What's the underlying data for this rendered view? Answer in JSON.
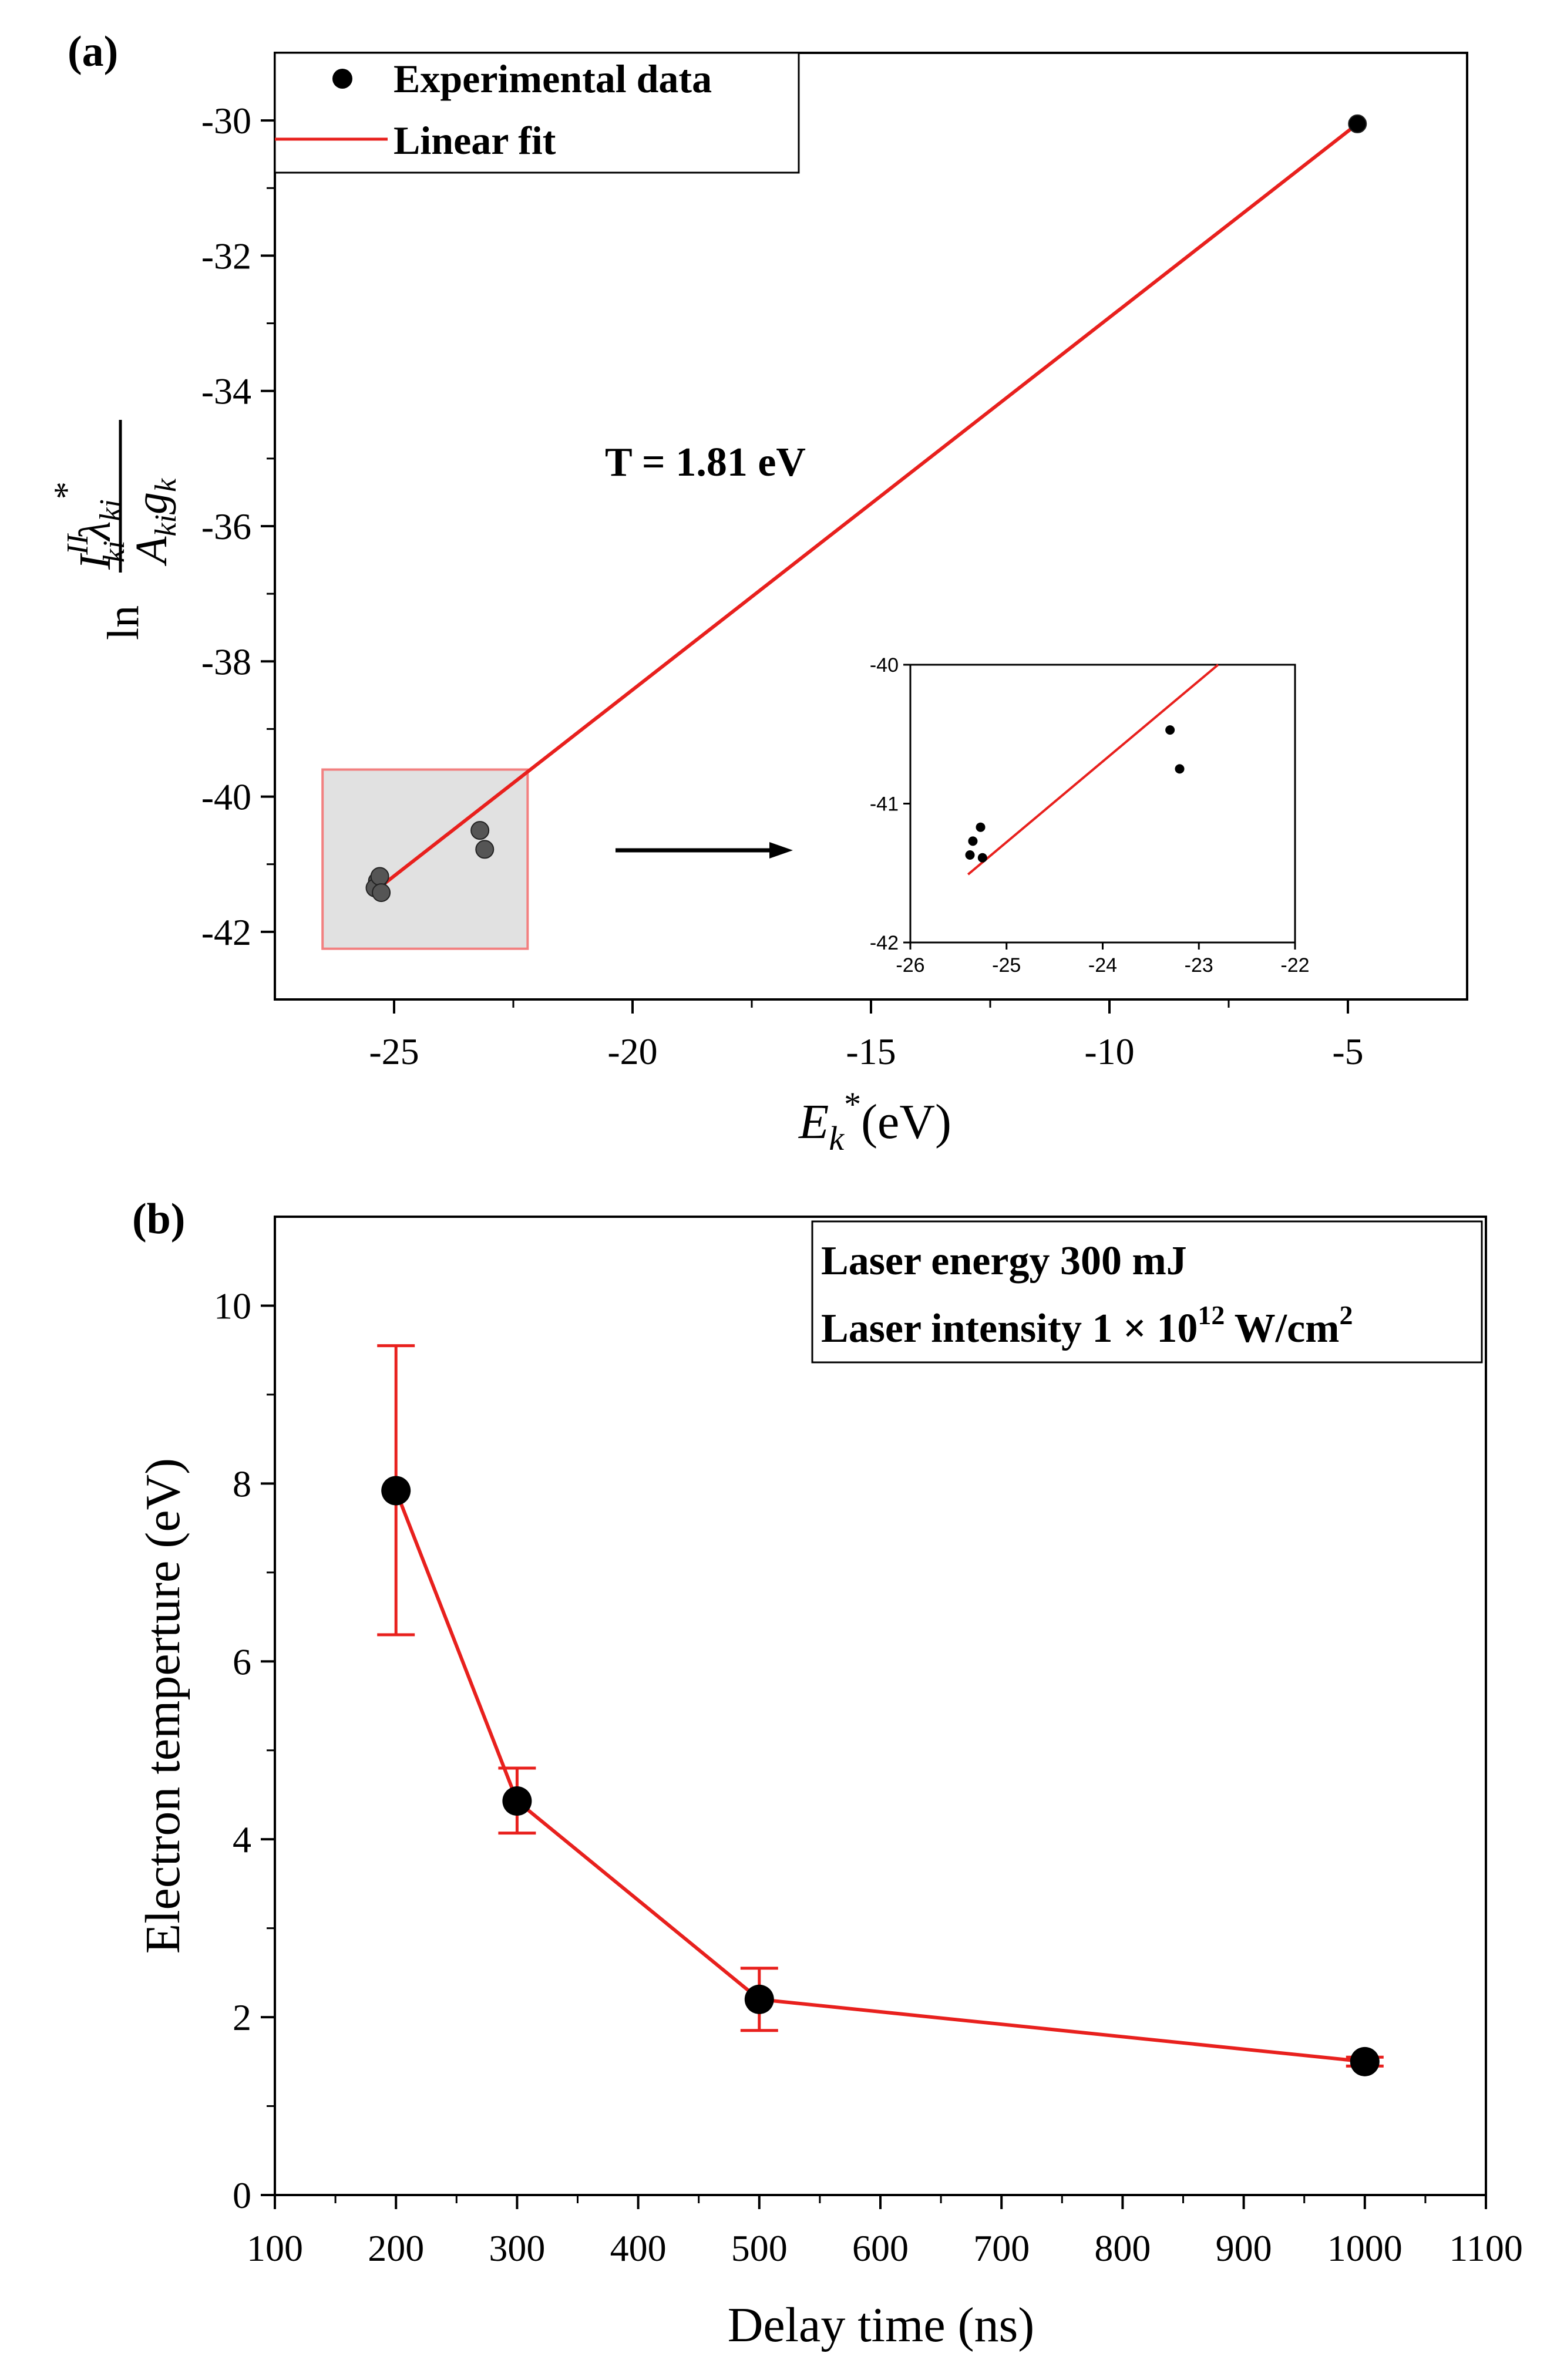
{
  "chart_data": [
    {
      "panel_label": "(a)",
      "type": "scatter",
      "title": "",
      "xlabel_main": "E",
      "xlabel_sub": "k",
      "xlabel_sup": "*",
      "xlabel_unit": "(eV)",
      "ylabel": {
        "prefix": "ln",
        "numerator_I": "I",
        "numerator_I_sup": "II",
        "numerator_I_sub": "ki",
        "numerator_lambda": "λ",
        "numerator_lambda_sub": "ki",
        "numerator_star": "*",
        "denominator_A": "A",
        "denominator_A_sub": "ki",
        "denominator_g": "g",
        "denominator_g_sub": "k"
      },
      "xlim": [
        -27.5,
        -2.5
      ],
      "ylim": [
        -43,
        -29
      ],
      "xticks": [
        -25,
        -20,
        -15,
        -10,
        -5
      ],
      "xtick_labels": [
        "-25",
        "-20",
        "-15",
        "-10",
        "-5"
      ],
      "yticks": [
        -42,
        -40,
        -38,
        -36,
        -34,
        -32,
        -30
      ],
      "ytick_labels": [
        "-42",
        "-40",
        "-38",
        "-36",
        "-34",
        "-32",
        "-30"
      ],
      "series": [
        {
          "name": "Experimental data",
          "kind": "points",
          "color": "#000000",
          "points": [
            {
              "x": -25.35,
              "y": -41.25
            },
            {
              "x": -25.4,
              "y": -41.35
            },
            {
              "x": -25.3,
              "y": -41.18
            },
            {
              "x": -25.27,
              "y": -41.42
            },
            {
              "x": -23.2,
              "y": -40.5
            },
            {
              "x": -23.1,
              "y": -40.78
            },
            {
              "x": -4.8,
              "y": -30.05
            }
          ]
        },
        {
          "name": "Linear fit",
          "kind": "line",
          "color": "#e8201d",
          "points": [
            {
              "x": -25.5,
              "y": -41.45
            },
            {
              "x": -4.8,
              "y": -30.05
            }
          ]
        }
      ],
      "legend": {
        "position": "top-left",
        "entries": [
          "Experimental data",
          "Linear fit"
        ]
      },
      "annotation": "T = 1.81 eV",
      "zoom_region": {
        "x": [
          -26.5,
          -22.2
        ],
        "y": [
          -42.25,
          -39.6
        ],
        "fill": "#e1e1e1",
        "edge": "#f28080"
      },
      "inset": {
        "xlim": [
          -26,
          -22
        ],
        "ylim": [
          -42,
          -40
        ],
        "xticks": [
          -26,
          -25,
          -24,
          -23,
          -22
        ],
        "xtick_labels": [
          "-26",
          "-25",
          "-24",
          "-23",
          "-22"
        ],
        "yticks": [
          -42,
          -41,
          -40
        ],
        "ytick_labels": [
          "-42",
          "-41",
          "-40"
        ],
        "points": [
          {
            "x": -25.35,
            "y": -41.27
          },
          {
            "x": -25.38,
            "y": -41.37
          },
          {
            "x": -25.27,
            "y": -41.17
          },
          {
            "x": -25.25,
            "y": -41.39
          },
          {
            "x": -23.3,
            "y": -40.47
          },
          {
            "x": -23.2,
            "y": -40.75
          }
        ],
        "fit": [
          {
            "x": -25.4,
            "y": -41.51
          },
          {
            "x": -22.8,
            "y": -40.0
          }
        ]
      }
    },
    {
      "panel_label": "(b)",
      "type": "line",
      "title": "",
      "xlabel": "Delay time (ns)",
      "ylabel": "Electron temperture (eV)",
      "xlim": [
        100,
        1100
      ],
      "ylim": [
        0,
        11
      ],
      "xticks": [
        100,
        200,
        300,
        400,
        500,
        600,
        700,
        800,
        900,
        1000,
        1100
      ],
      "xtick_labels": [
        "100",
        "200",
        "300",
        "400",
        "500",
        "600",
        "700",
        "800",
        "900",
        "1000",
        "1100"
      ],
      "yticks": [
        0,
        2,
        4,
        6,
        8,
        10
      ],
      "ytick_labels": [
        "0",
        "2",
        "4",
        "6",
        "8",
        "10"
      ],
      "series": [
        {
          "name": "Electron temperature",
          "marker_color": "#000000",
          "line_color": "#e8201d",
          "x": [
            200,
            300,
            500,
            1000
          ],
          "y": [
            7.92,
            4.43,
            2.2,
            1.5
          ],
          "err_low": [
            6.3,
            4.07,
            1.85,
            1.45
          ],
          "err_high": [
            9.55,
            4.8,
            2.55,
            1.55
          ]
        }
      ],
      "legend": {
        "position": "top-right",
        "line1": "Laser energy 300 mJ",
        "line2_prefix": "Laser intensity 1 × 10",
        "line2_exp": "12",
        "line2_unit": " W/cm",
        "line2_unit_exp": "2"
      }
    }
  ]
}
